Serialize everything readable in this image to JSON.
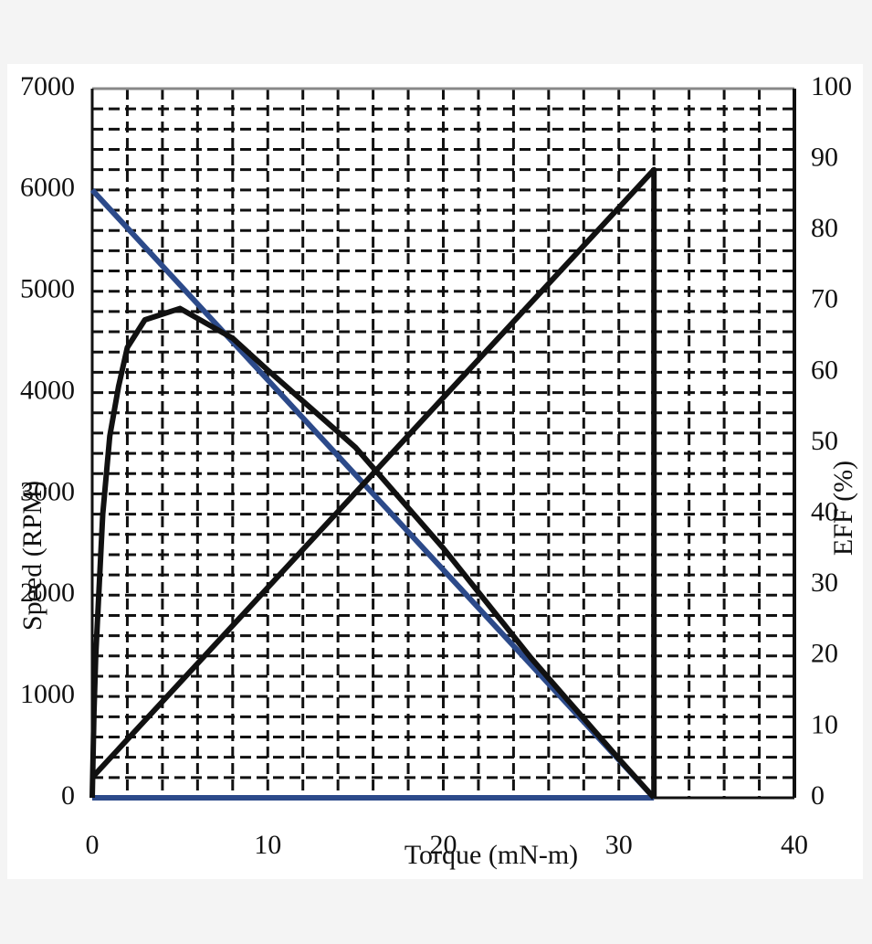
{
  "chart_data": {
    "type": "line",
    "x_label": "Torque (mN-m)",
    "y_label": "Speed (RPM)",
    "y2_label": "EFF (%)",
    "xlim": [
      0,
      40
    ],
    "xticks": [
      0,
      10,
      20,
      30,
      40
    ],
    "ylim": [
      0,
      7000
    ],
    "yticks": [
      0,
      1000,
      2000,
      3000,
      4000,
      5000,
      6000,
      7000
    ],
    "y2lim": [
      0,
      100
    ],
    "y2ticks": [
      0,
      10,
      20,
      30,
      40,
      50,
      60,
      70,
      80,
      90,
      100
    ],
    "grid": true,
    "xgrid": [
      2,
      4,
      6,
      8,
      10,
      12,
      14,
      16,
      18,
      20,
      22,
      24,
      26,
      28,
      30,
      32,
      34,
      36,
      38
    ],
    "ygrid": [
      200,
      400,
      600,
      800,
      1000,
      1200,
      1400,
      1600,
      1800,
      2000,
      2200,
      2400,
      2600,
      2800,
      3000,
      3200,
      3400,
      3600,
      3800,
      4000,
      4200,
      4400,
      4600,
      4800,
      5000,
      5200,
      5400,
      5600,
      5800,
      6000,
      6200,
      6400,
      6600,
      6800
    ],
    "series": [
      {
        "color": "#2c4a8a",
        "x": [
          0,
          32
        ],
        "values": [
          0,
          0
        ]
      },
      {
        "color": "#2c4a8a",
        "x": [
          0,
          32
        ],
        "values": [
          6000,
          0
        ]
      },
      {
        "color": "#111111",
        "x": [
          0,
          32,
          32
        ],
        "values": [
          200,
          6200,
          0
        ]
      },
      {
        "color": "#111111",
        "axis": "y2",
        "x": [
          0,
          0.1,
          0.2,
          0.3,
          0.6,
          1,
          1.5,
          2,
          3,
          5,
          8,
          10,
          15,
          20,
          25,
          30,
          32
        ],
        "values": [
          0,
          12,
          20,
          25,
          40,
          51,
          58,
          63.5,
          67.4,
          69,
          64.8,
          60.3,
          49.4,
          35.2,
          19.7,
          5.5,
          0
        ]
      }
    ]
  }
}
